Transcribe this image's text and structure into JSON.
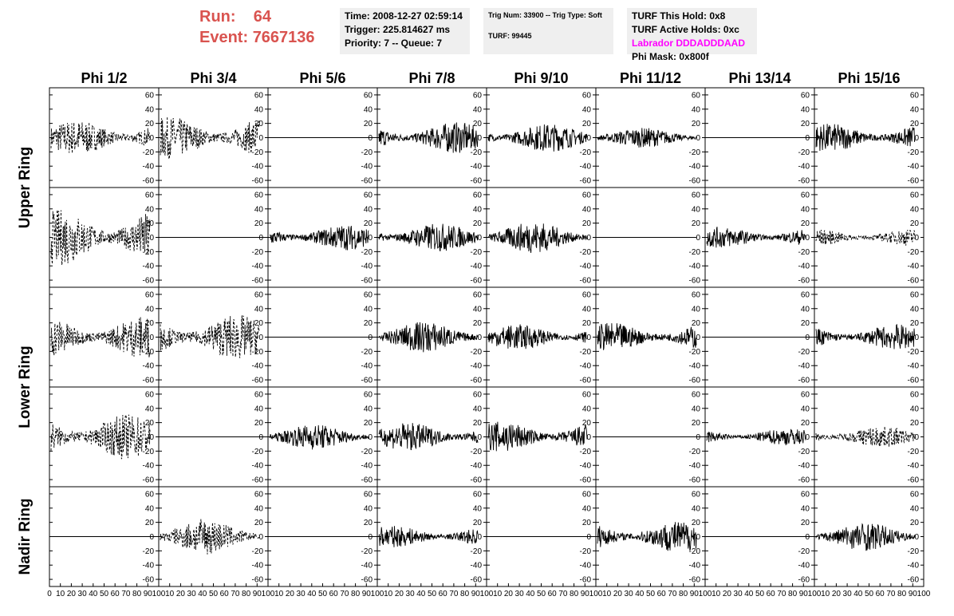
{
  "header": {
    "run_label": "Run:",
    "run_value": "64",
    "event_label": "Event:",
    "event_value": "7667136"
  },
  "info_time": {
    "time": "Time: 2008-12-27 02:59:14",
    "trigger": "Trigger: 225.814627 ms",
    "priority": "Priority: 7 -- Queue: 7"
  },
  "info_trig": {
    "trig": "Trig Num: 33900 -- Trig Type: Soft",
    "turf": "TURF: 99445"
  },
  "info_turf": {
    "this_hold": "TURF This Hold: 0x8",
    "active_holds": "TURF Active Holds: 0xc",
    "labrador": "Labrador DDDADDDAAD",
    "phi_mask": "Phi Mask: 0x800f"
  },
  "colors": {
    "title_red": "#d9534f",
    "labrador_magenta": "#ff00ff",
    "info_bg": "#efefef"
  },
  "chart_data": {
    "type": "line",
    "column_titles": [
      "Phi 1/2",
      "Phi 3/4",
      "Phi 5/6",
      "Phi 7/8",
      "Phi 9/10",
      "Phi 11/12",
      "Phi 13/14",
      "Phi 15/16"
    ],
    "ring_labels": [
      "Upper Ring",
      "Lower Ring",
      "Nadir Ring"
    ],
    "ylim": [
      -70,
      70
    ],
    "y_ticks": [
      "60",
      "40",
      "20",
      "0",
      "-20",
      "-40",
      "-60"
    ],
    "xlim": [
      0,
      100
    ],
    "x_ticks_first": [
      "0",
      "10",
      "20",
      "30",
      "40",
      "50",
      "60",
      "70",
      "80",
      "90",
      "100"
    ],
    "x_ticks_other": [
      "10",
      "20",
      "30",
      "40",
      "50",
      "60",
      "70",
      "80",
      "90",
      "100"
    ],
    "line_styles": {
      "d": "dashed",
      "s": "solid",
      "f": "flat"
    },
    "panels": [
      [
        "d",
        "d",
        "f",
        "s",
        "s",
        "s",
        "f",
        "s"
      ],
      [
        "d",
        "f",
        "s",
        "s",
        "s",
        "s",
        "s",
        "d"
      ],
      [
        "d",
        "d",
        "f",
        "s",
        "s",
        "s",
        "f",
        "s"
      ],
      [
        "d",
        "f",
        "s",
        "s",
        "s",
        "f",
        "s",
        "d"
      ],
      [
        "f",
        "d",
        "f",
        "s",
        "f",
        "s",
        "f",
        "s"
      ]
    ],
    "amplitudes": [
      [
        25,
        30,
        0,
        22,
        20,
        14,
        0,
        20
      ],
      [
        40,
        0,
        18,
        20,
        22,
        0,
        15,
        12
      ],
      [
        30,
        32,
        0,
        22,
        18,
        20,
        0,
        18
      ],
      [
        32,
        0,
        18,
        20,
        22,
        0,
        12,
        15
      ],
      [
        0,
        25,
        0,
        15,
        0,
        22,
        0,
        20
      ]
    ]
  }
}
